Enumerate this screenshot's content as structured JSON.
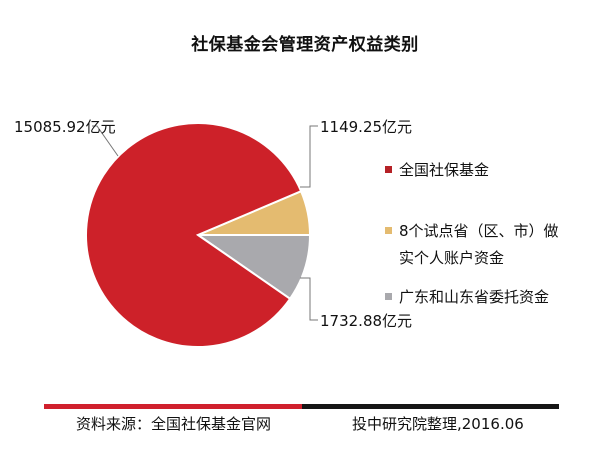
{
  "chart_data": {
    "type": "pie",
    "title": "社保基金会管理资产权益类别",
    "unit": "亿元",
    "slices": [
      {
        "name": "全国社保基金",
        "value": 15085.92,
        "label": "15085.92亿元",
        "color": "#cd2129"
      },
      {
        "name": "8个试点省（区、市）做实个人账户资金",
        "value": 1149.25,
        "label": "1149.25亿元",
        "color": "#e4bb70"
      },
      {
        "name": "广东和山东省委托资金",
        "value": 1732.88,
        "label": "1732.88亿元",
        "color": "#a9a9ad"
      }
    ],
    "legend": {
      "placement": "right",
      "entries": [
        {
          "lines": [
            "全国社保基金"
          ],
          "color": "#b52126"
        },
        {
          "lines": [
            "8个试点省（区、市）做",
            "实个人账户资金"
          ],
          "color": "#e4bb70"
        },
        {
          "lines": [
            "广东和山东省委托资金"
          ],
          "color": "#a9a9ad"
        }
      ]
    }
  },
  "footer": {
    "source_left": "资料来源：全国社保基金官网",
    "source_right": "投中研究院整理,2016.06"
  }
}
